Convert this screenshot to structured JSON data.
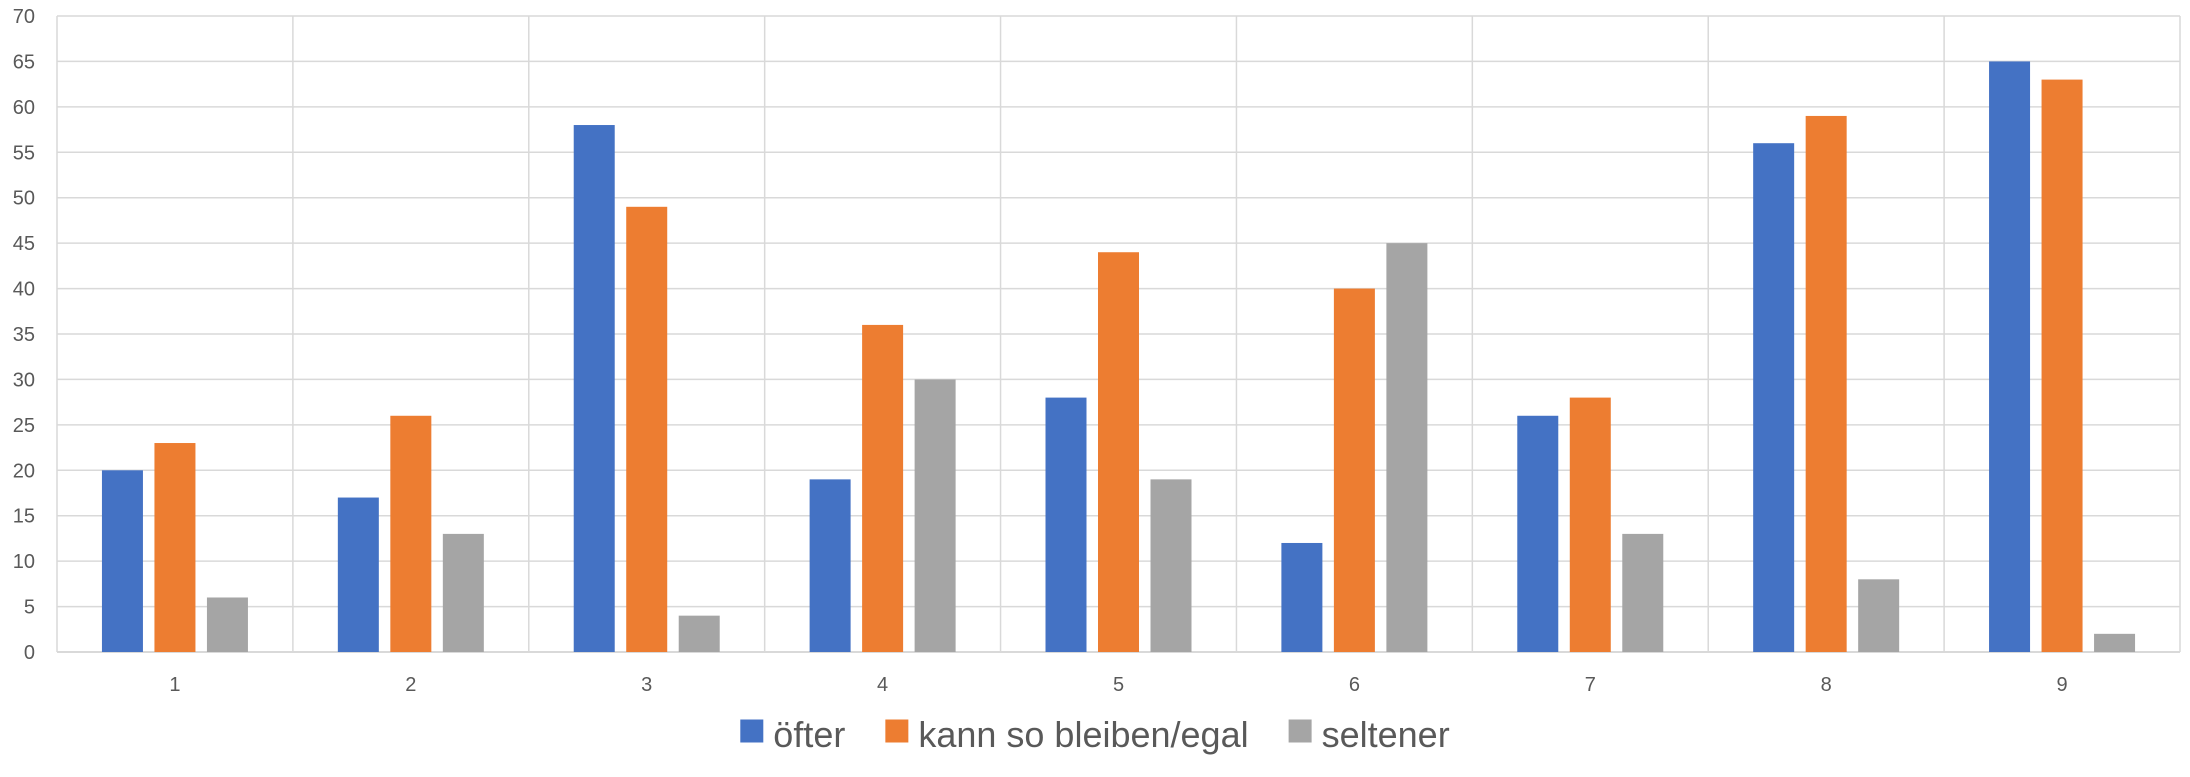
{
  "chart_data": {
    "type": "bar",
    "title": "",
    "xlabel": "",
    "ylabel": "",
    "categories": [
      "1",
      "2",
      "3",
      "4",
      "5",
      "6",
      "7",
      "8",
      "9"
    ],
    "ylim": [
      0,
      70
    ],
    "ytick_step": 5,
    "grid": true,
    "legend_position": "bottom",
    "series": [
      {
        "name": "öfter",
        "color": "#4472c4",
        "values": [
          20,
          17,
          58,
          19,
          28,
          12,
          26,
          56,
          65
        ]
      },
      {
        "name": "kann so bleiben/egal",
        "color": "#ed7d31",
        "values": [
          23,
          26,
          49,
          36,
          44,
          40,
          28,
          59,
          63
        ]
      },
      {
        "name": "seltener",
        "color": "#a5a5a5",
        "values": [
          6,
          13,
          4,
          30,
          19,
          45,
          13,
          8,
          2
        ]
      }
    ]
  }
}
